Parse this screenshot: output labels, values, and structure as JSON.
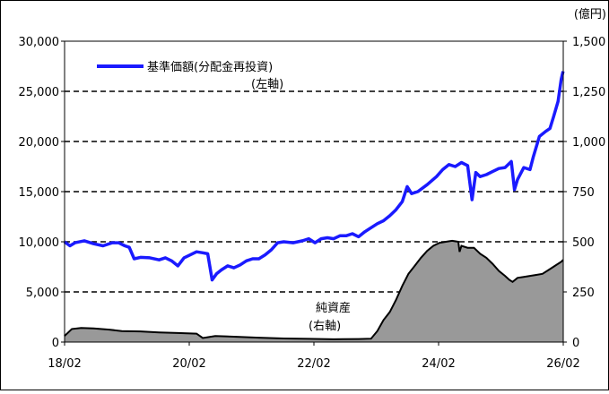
{
  "chart_data": {
    "type": "line",
    "unit_right": "(億円)",
    "x_ticks": [
      "18/02",
      "20/02",
      "22/02",
      "24/02",
      "26/02"
    ],
    "x_range": [
      2018.0833,
      2026.0833
    ],
    "left_axis": {
      "min": 0,
      "max": 30000,
      "ticks": [
        "0",
        "5,000",
        "10,000",
        "15,000",
        "20,000",
        "25,000",
        "30,000"
      ]
    },
    "right_axis": {
      "min": 0,
      "max": 1500,
      "ticks": [
        "0",
        "250",
        "500",
        "750",
        "1,000",
        "1,250",
        "1,500"
      ]
    },
    "grid": "dashed-horizontal",
    "legend": {
      "label": "基準価額(分配金再投資)",
      "sub": "(左軸)",
      "position": "top-left"
    },
    "series": [
      {
        "name": "基準価額(分配金再投資)",
        "axis": "left",
        "color": "#1a1aff",
        "points": [
          [
            2018.08,
            10000
          ],
          [
            2018.17,
            9600
          ],
          [
            2018.25,
            9900
          ],
          [
            2018.4,
            10100
          ],
          [
            2018.55,
            9800
          ],
          [
            2018.7,
            9600
          ],
          [
            2018.85,
            9900
          ],
          [
            2018.95,
            9900
          ],
          [
            2019.05,
            9600
          ],
          [
            2019.12,
            9450
          ],
          [
            2019.2,
            8300
          ],
          [
            2019.3,
            8450
          ],
          [
            2019.45,
            8400
          ],
          [
            2019.6,
            8200
          ],
          [
            2019.7,
            8400
          ],
          [
            2019.8,
            8100
          ],
          [
            2019.9,
            7600
          ],
          [
            2020.0,
            8400
          ],
          [
            2020.1,
            8700
          ],
          [
            2020.2,
            9000
          ],
          [
            2020.3,
            8900
          ],
          [
            2020.38,
            8800
          ],
          [
            2020.45,
            6200
          ],
          [
            2020.52,
            6800
          ],
          [
            2020.6,
            7200
          ],
          [
            2020.7,
            7600
          ],
          [
            2020.8,
            7400
          ],
          [
            2020.9,
            7700
          ],
          [
            2021.0,
            8100
          ],
          [
            2021.1,
            8300
          ],
          [
            2021.2,
            8300
          ],
          [
            2021.3,
            8700
          ],
          [
            2021.4,
            9200
          ],
          [
            2021.5,
            9900
          ],
          [
            2021.6,
            10000
          ],
          [
            2021.75,
            9900
          ],
          [
            2021.9,
            10100
          ],
          [
            2022.0,
            10300
          ],
          [
            2022.1,
            9900
          ],
          [
            2022.2,
            10300
          ],
          [
            2022.3,
            10400
          ],
          [
            2022.4,
            10300
          ],
          [
            2022.5,
            10600
          ],
          [
            2022.6,
            10600
          ],
          [
            2022.7,
            10800
          ],
          [
            2022.8,
            10500
          ],
          [
            2022.9,
            11000
          ],
          [
            2023.0,
            11400
          ],
          [
            2023.1,
            11800
          ],
          [
            2023.2,
            12100
          ],
          [
            2023.3,
            12600
          ],
          [
            2023.4,
            13200
          ],
          [
            2023.5,
            14000
          ],
          [
            2023.58,
            15500
          ],
          [
            2023.65,
            14800
          ],
          [
            2023.75,
            15000
          ],
          [
            2023.9,
            15700
          ],
          [
            2024.05,
            16500
          ],
          [
            2024.15,
            17200
          ],
          [
            2024.25,
            17700
          ],
          [
            2024.35,
            17500
          ],
          [
            2024.45,
            17900
          ],
          [
            2024.55,
            17600
          ],
          [
            2024.62,
            14200
          ],
          [
            2024.68,
            16900
          ],
          [
            2024.75,
            16500
          ],
          [
            2024.85,
            16700
          ],
          [
            2024.95,
            17000
          ],
          [
            2025.05,
            17300
          ],
          [
            2025.15,
            17400
          ],
          [
            2025.25,
            18000
          ],
          [
            2025.3,
            15200
          ],
          [
            2025.35,
            16200
          ],
          [
            2025.45,
            17400
          ],
          [
            2025.55,
            17200
          ],
          [
            2025.6,
            18400
          ],
          [
            2025.7,
            20500
          ],
          [
            2025.8,
            21000
          ],
          [
            2025.87,
            21300
          ],
          [
            2025.93,
            22500
          ],
          [
            2026.0,
            24000
          ],
          [
            2026.05,
            26200
          ],
          [
            2026.08,
            27000
          ]
        ]
      },
      {
        "name": "純資産",
        "axis": "right",
        "color": "#999999",
        "points": [
          [
            2018.08,
            30
          ],
          [
            2018.2,
            65
          ],
          [
            2018.35,
            70
          ],
          [
            2018.55,
            68
          ],
          [
            2018.8,
            62
          ],
          [
            2019.0,
            55
          ],
          [
            2019.3,
            53
          ],
          [
            2019.6,
            48
          ],
          [
            2019.9,
            45
          ],
          [
            2020.2,
            42
          ],
          [
            2020.3,
            20
          ],
          [
            2020.5,
            30
          ],
          [
            2020.8,
            27
          ],
          [
            2021.2,
            22
          ],
          [
            2021.6,
            18
          ],
          [
            2022.0,
            16
          ],
          [
            2022.4,
            14
          ],
          [
            2022.8,
            15
          ],
          [
            2023.0,
            17
          ],
          [
            2023.1,
            55
          ],
          [
            2023.2,
            110
          ],
          [
            2023.3,
            150
          ],
          [
            2023.4,
            210
          ],
          [
            2023.5,
            280
          ],
          [
            2023.6,
            340
          ],
          [
            2023.7,
            380
          ],
          [
            2023.8,
            420
          ],
          [
            2023.9,
            455
          ],
          [
            2024.0,
            480
          ],
          [
            2024.1,
            495
          ],
          [
            2024.2,
            500
          ],
          [
            2024.3,
            505
          ],
          [
            2024.4,
            500
          ],
          [
            2024.42,
            450
          ],
          [
            2024.45,
            480
          ],
          [
            2024.55,
            470
          ],
          [
            2024.65,
            470
          ],
          [
            2024.75,
            440
          ],
          [
            2024.85,
            420
          ],
          [
            2024.95,
            390
          ],
          [
            2025.05,
            355
          ],
          [
            2025.15,
            330
          ],
          [
            2025.22,
            310
          ],
          [
            2025.27,
            300
          ],
          [
            2025.35,
            320
          ],
          [
            2025.45,
            325
          ],
          [
            2025.55,
            330
          ],
          [
            2025.65,
            335
          ],
          [
            2025.75,
            340
          ],
          [
            2025.85,
            360
          ],
          [
            2025.95,
            380
          ],
          [
            2026.05,
            400
          ],
          [
            2026.08,
            410
          ]
        ]
      }
    ],
    "annotation": {
      "label": "純資産",
      "sub": "(右軸)"
    }
  }
}
